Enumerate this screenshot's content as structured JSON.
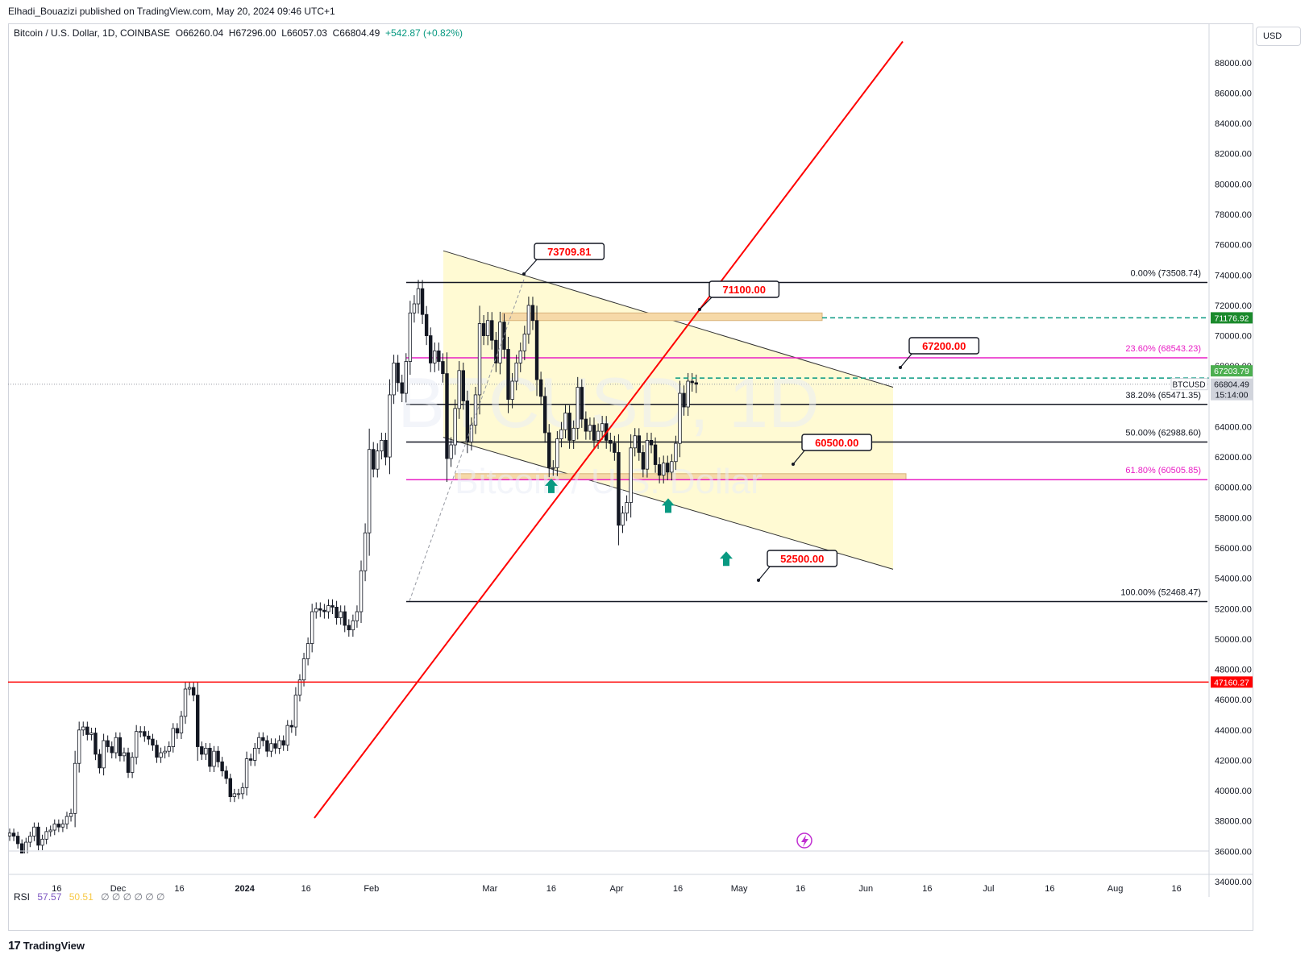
{
  "publisher": "Elhadi_Bouazizi published on TradingView.com, May 20, 2024 09:46 UTC+1",
  "legend": {
    "title": "Bitcoin / U.S. Dollar, 1D, COINBASE",
    "open": "O66260.04",
    "high": "H67296.00",
    "low": "L66057.03",
    "close": "C66804.49",
    "change": "+542.87 (+0.82%)"
  },
  "currency": "USD",
  "watermark": {
    "line1": "BTCUSD, 1D",
    "line2": "Bitcoin / U.S. Dollar"
  },
  "rsi": {
    "label": "RSI",
    "value1": "57.57",
    "value2": "50.51",
    "glyphs": "∅ ∅ ∅ ∅ ∅ ∅"
  },
  "footer": {
    "brand": "TradingView",
    "logo": "17"
  },
  "colors": {
    "up": "#089981",
    "down": "#131722",
    "red": "#ff0000",
    "magenta": "#e91ec5",
    "green": "#089981",
    "channel": "#fff8c4"
  },
  "chart_data": {
    "type": "candlestick",
    "symbol": "BTCUSD",
    "timeframe": "1D",
    "ylim": [
      34000,
      90000
    ],
    "y_ticks": [
      "34000.00",
      "36000.00",
      "38000.00",
      "40000.00",
      "42000.00",
      "44000.00",
      "46000.00",
      "48000.00",
      "50000.00",
      "52000.00",
      "54000.00",
      "56000.00",
      "58000.00",
      "60000.00",
      "62000.00",
      "64000.00",
      "66000.00",
      "68000.00",
      "70000.00",
      "72000.00",
      "74000.00",
      "76000.00",
      "78000.00",
      "80000.00",
      "82000.00",
      "84000.00",
      "86000.00",
      "88000.00"
    ],
    "x_ticks": [
      {
        "label": "16",
        "date": "2023-11-16"
      },
      {
        "label": "Dec",
        "date": "2023-12-01"
      },
      {
        "label": "16",
        "date": "2023-12-16"
      },
      {
        "label": "2024",
        "date": "2024-01-01"
      },
      {
        "label": "16",
        "date": "2024-01-16"
      },
      {
        "label": "Feb",
        "date": "2024-02-01"
      },
      {
        "label": "Mar",
        "date": "2024-03-01"
      },
      {
        "label": "16",
        "date": "2024-03-16"
      },
      {
        "label": "Apr",
        "date": "2024-04-01"
      },
      {
        "label": "16",
        "date": "2024-04-16"
      },
      {
        "label": "May",
        "date": "2024-05-01"
      },
      {
        "label": "16",
        "date": "2024-05-16"
      },
      {
        "label": "Jun",
        "date": "2024-06-01"
      },
      {
        "label": "16",
        "date": "2024-06-16"
      },
      {
        "label": "Jul",
        "date": "2024-07-01"
      },
      {
        "label": "16",
        "date": "2024-07-16"
      },
      {
        "label": "Aug",
        "date": "2024-08-01"
      },
      {
        "label": "16",
        "date": "2024-08-16"
      }
    ],
    "start_date": "2023-11-10",
    "closes": [
      37200,
      37000,
      36500,
      35800,
      36600,
      37000,
      37600,
      36400,
      36800,
      37300,
      37400,
      37800,
      37600,
      37800,
      38300,
      38500,
      41800,
      44000,
      44200,
      43700,
      43800,
      42400,
      41500,
      43300,
      42900,
      42500,
      43500,
      42300,
      42500,
      41200,
      42200,
      43900,
      43900,
      43600,
      43400,
      43000,
      42200,
      42500,
      42600,
      42900,
      44100,
      43800,
      44900,
      46700,
      46800,
      46300,
      42900,
      42400,
      42800,
      41600,
      42600,
      41900,
      41300,
      40800,
      39600,
      39800,
      39800,
      40200,
      42100,
      42000,
      42800,
      43500,
      43300,
      42600,
      43100,
      42800,
      43300,
      43000,
      44300,
      44200,
      46300,
      47300,
      48700,
      49700,
      51800,
      52000,
      51900,
      51800,
      52200,
      52100,
      51400,
      51800,
      50900,
      50600,
      51200,
      51800,
      54500,
      57000,
      62500,
      61200,
      62400,
      63100,
      62000,
      66100,
      68200,
      66900,
      66200,
      68300,
      71500,
      72100,
      73100,
      71400,
      70000,
      68200,
      69000,
      68300,
      67500,
      61900,
      62800,
      65200,
      67700,
      65700,
      63000,
      64100,
      66100,
      70800,
      70000,
      71000,
      69700,
      68200,
      70900,
      69100,
      65800,
      67000,
      68200,
      69000,
      70100,
      72000,
      71000,
      67100,
      66000,
      63600,
      61300,
      61300,
      63200,
      63800,
      64900,
      63100,
      63900,
      66600,
      64500,
      63700,
      64100,
      63100,
      63700,
      64200,
      63100,
      62900,
      62300,
      57500,
      58300,
      59000,
      62600,
      63400,
      62300,
      61200,
      63100,
      62800,
      61500,
      60800,
      61600,
      61000,
      61700,
      62900,
      66200,
      65300,
      67000,
      66900,
      66804
    ]
  },
  "levels": {
    "fib": [
      {
        "label": "0.00% (73508.74)",
        "price": 73508.74
      },
      {
        "label": "23.60% (68543.23)",
        "price": 68543.23
      },
      {
        "label": "38.20% (65471.35)",
        "price": 65471.35
      },
      {
        "label": "50.00% (62988.60)",
        "price": 62988.6
      },
      {
        "label": "61.80% (60505.85)",
        "price": 60505.85
      },
      {
        "label": "100.00% (52468.47)",
        "price": 52468.47
      }
    ],
    "callouts": [
      {
        "label": "73709.81",
        "price": 73709.81
      },
      {
        "label": "71100.00",
        "price": 71100.0
      },
      {
        "label": "67200.00",
        "price": 67200.0
      },
      {
        "label": "60500.00",
        "price": 60500.0
      },
      {
        "label": "52500.00",
        "price": 52500.0
      }
    ],
    "price_badges": {
      "level_71176": "71176.92",
      "level_67203": "67203.79",
      "symbol": "BTCUSD",
      "last_price": "66804.49",
      "countdown": "15:14:00",
      "support_47160": "47160.27"
    }
  }
}
